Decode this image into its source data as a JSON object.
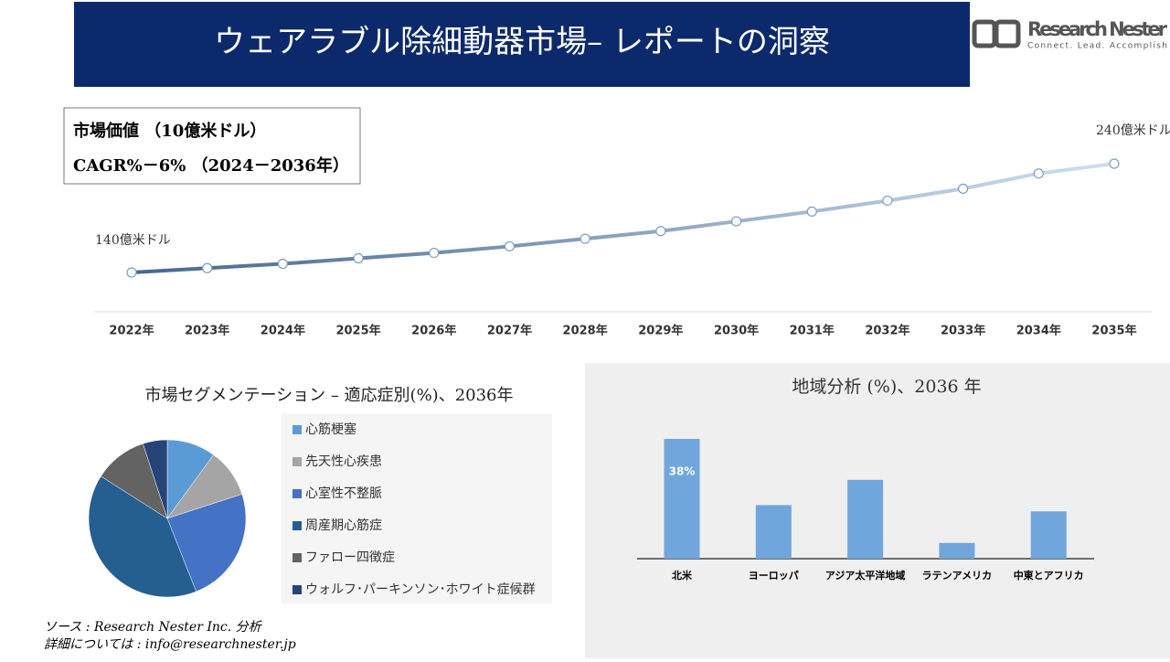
{
  "header": {
    "title": "ウェアラブル除細動器市場– レポートの洞察",
    "logo_name": "Research Nester",
    "logo_tagline": "Connect. Lead. Accomplish"
  },
  "info_box": {
    "line1": "市場価値 （10億米ドル）",
    "line2": "CAGR%－6% （2024－2036年）"
  },
  "chart_data": [
    {
      "type": "line",
      "categories": [
        "2022年",
        "2023年",
        "2024年",
        "2025年",
        "2026年",
        "2027年",
        "2028年",
        "2029年",
        "2030年",
        "2031年",
        "2032年",
        "2033年",
        "2034年",
        "2035年"
      ],
      "values": [
        140,
        144,
        148,
        153,
        158,
        164,
        171,
        178,
        187,
        196,
        206,
        217,
        231,
        240
      ],
      "value_labels": [
        "140億米ドル",
        null,
        null,
        null,
        null,
        null,
        null,
        null,
        null,
        null,
        null,
        null,
        null,
        "240億米ドル"
      ],
      "color_start": "#46678f",
      "color_end": "#d0dff0"
    },
    {
      "type": "pie",
      "title": "市場セグメンテーション – 適応症別(%)、2036年",
      "categories": [
        "心筋梗塞",
        "先天性心疾患",
        "心室性不整脈",
        "周産期心筋症",
        "ファロー四徴症",
        "ウォルフ･パーキンソン･ホワイト症候群"
      ],
      "values": [
        10,
        10,
        24,
        40,
        11,
        5
      ],
      "colors": [
        "#5b9bd5",
        "#a5a5a5",
        "#4472c4",
        "#255e91",
        "#636363",
        "#264478"
      ]
    },
    {
      "type": "bar",
      "title": "地域分析 (%)、2036 年",
      "categories": [
        "北米",
        "ヨーロッパ",
        "アジア太平洋地域",
        "ラテンアメリカ",
        "中東とアフリカ"
      ],
      "values": [
        38,
        17,
        25,
        5,
        15
      ],
      "value_labels": [
        "38%",
        null,
        null,
        null,
        null
      ],
      "color": "#70a6dc"
    }
  ],
  "footer": {
    "source": "ソース : Research Nester Inc. 分析",
    "contact": "詳細については : info@researchnester.jp"
  }
}
